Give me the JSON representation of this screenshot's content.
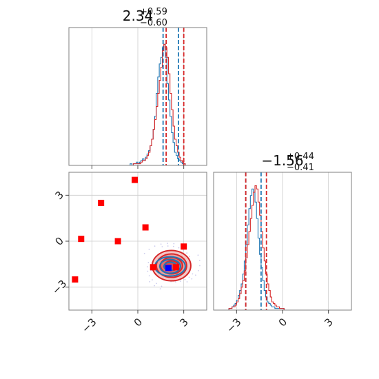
{
  "colors": {
    "series_blue": "#1f77b4",
    "series_red": "#d62728",
    "marker_red": "#ff0000",
    "marker_blue": "#0000ff",
    "frame": "#7f7f7f",
    "grid": "#cccccc"
  },
  "chart_data": {
    "type": "corner",
    "parameters": [
      {
        "summary": {
          "median": "2.34",
          "plus": "+0.59",
          "minus": "−0.60"
        },
        "hist_bins": [
          -4.5,
          4.5
        ],
        "quantiles_blue": [
          1.65,
          2.65
        ],
        "quantiles_red": [
          1.85,
          3.0
        ],
        "hist_blue": {
          "x0": -0.5,
          "dx": 0.1,
          "counts": [
            1,
            0,
            1,
            1,
            2,
            1,
            2,
            3,
            4,
            3,
            5,
            7,
            9,
            12,
            16,
            22,
            30,
            44,
            54,
            62,
            66,
            72,
            74,
            66,
            50,
            40,
            30,
            20,
            14,
            8,
            6,
            4,
            3,
            2,
            1,
            1
          ]
        },
        "hist_red": {
          "x0": -0.5,
          "dx": 0.1,
          "counts": [
            0,
            0,
            1,
            1,
            1,
            1,
            1,
            2,
            3,
            3,
            4,
            6,
            8,
            12,
            16,
            22,
            28,
            36,
            44,
            52,
            60,
            70,
            74,
            72,
            66,
            56,
            44,
            34,
            24,
            16,
            12,
            8,
            5,
            3,
            2,
            1
          ]
        }
      },
      {
        "summary": {
          "median": "−1.56",
          "plus": "+0.44",
          "minus": "−0.41"
        },
        "hist_bins": [
          -4.5,
          4.5
        ],
        "quantiles_blue": [
          -2.4,
          -1.4
        ],
        "quantiles_red": [
          -2.4,
          -1.05
        ],
        "hist_blue": {
          "x0": -3.5,
          "dx": 0.1,
          "counts": [
            1,
            1,
            2,
            3,
            4,
            6,
            9,
            12,
            16,
            22,
            30,
            40,
            52,
            62,
            70,
            74,
            72,
            66,
            56,
            44,
            34,
            26,
            18,
            12,
            8,
            5,
            4,
            3,
            2,
            2,
            1,
            1,
            1,
            1,
            1,
            1
          ]
        },
        "hist_red": {
          "x0": -3.5,
          "dx": 0.1,
          "counts": [
            1,
            1,
            2,
            2,
            3,
            5,
            7,
            10,
            14,
            18,
            24,
            32,
            40,
            48,
            56,
            64,
            72,
            76,
            74,
            66,
            58,
            48,
            38,
            30,
            22,
            16,
            12,
            8,
            5,
            4,
            3,
            2,
            2,
            1,
            1,
            1
          ]
        }
      }
    ],
    "scatter_red": [
      {
        "x": -3.7,
        "y": 0.15
      },
      {
        "x": -2.4,
        "y": 2.5
      },
      {
        "x": -0.2,
        "y": 4.0
      },
      {
        "x": -1.3,
        "y": 0.0
      },
      {
        "x": 0.5,
        "y": 0.9
      },
      {
        "x": 3.0,
        "y": -0.35
      },
      {
        "x": -4.1,
        "y": -2.5
      },
      {
        "x": 1.0,
        "y": -1.7
      },
      {
        "x": 2.5,
        "y": -1.7
      }
    ],
    "scatter_blue": [
      {
        "x": 2.0,
        "y": -1.75
      }
    ],
    "contour_center": {
      "x": 2.2,
      "y": -1.6
    },
    "axis_range": [
      -4.5,
      4.5
    ],
    "ticks": [
      -3,
      0,
      3
    ],
    "tick_labels": [
      "−3",
      "0",
      "3"
    ],
    "grid": true
  }
}
